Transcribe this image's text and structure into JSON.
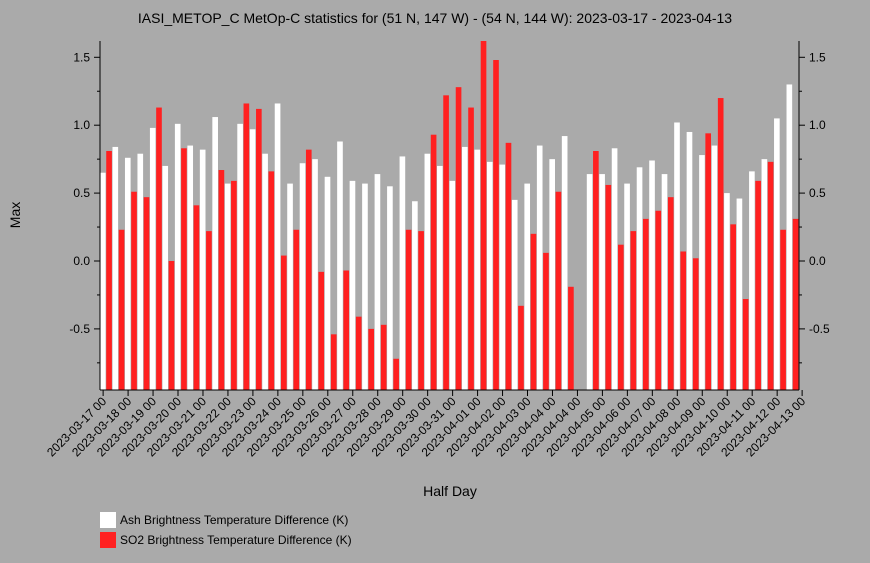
{
  "chart_data": {
    "type": "bar",
    "title": "IASI_METOP_C MetOp-C statistics for (51 N, 147 W) - (54 N, 144 W): 2023-03-17 - 2023-04-13",
    "xlabel": "Half Day",
    "ylabel": "Max",
    "ylim": [
      -0.95,
      1.62
    ],
    "yticks": [
      -0.5,
      0.0,
      0.5,
      1.0,
      1.5
    ],
    "ytick_labels": [
      "-0.5",
      "0.0",
      "0.5",
      "1.0",
      "1.5"
    ],
    "xtick_labels": [
      "2023-03-17 00",
      "2023-03-18 00",
      "2023-03-19 00",
      "2023-03-20 00",
      "2023-03-21 00",
      "2023-03-22 00",
      "2023-03-23 00",
      "2023-03-24 00",
      "2023-03-25 00",
      "2023-03-26 00",
      "2023-03-27 00",
      "2023-03-28 00",
      "2023-03-29 00",
      "2023-03-30 00",
      "2023-03-31 00",
      "2023-04-01 00",
      "2023-04-02 00",
      "2023-04-03 00",
      "2023-04-04 00",
      "2023-04-04 00",
      "2023-04-05 00",
      "2023-04-06 00",
      "2023-04-07 00",
      "2023-04-08 00",
      "2023-04-09 00",
      "2023-04-10 00",
      "2023-04-11 00",
      "2023-04-12 00",
      "2023-04-13 00"
    ],
    "grid": false,
    "legend_position": "bottom-left",
    "series": [
      {
        "name": "Ash Brightness Temperature Difference (K)",
        "color": "#ffffff",
        "values": [
          0.65,
          0.84,
          0.76,
          0.79,
          0.98,
          0.7,
          1.01,
          0.85,
          0.82,
          1.06,
          0.57,
          1.01,
          0.97,
          0.79,
          1.16,
          0.57,
          0.72,
          0.75,
          0.62,
          0.88,
          0.59,
          0.57,
          0.64,
          0.55,
          0.77,
          0.44,
          0.79,
          0.7,
          0.59,
          0.84,
          0.82,
          0.73,
          0.71,
          0.45,
          0.57,
          0.85,
          0.75,
          0.92,
          null,
          0.64,
          0.64,
          0.83,
          0.57,
          0.69,
          0.74,
          0.64,
          1.02,
          0.95,
          0.78,
          0.85,
          0.5,
          0.46,
          0.66,
          0.75,
          1.05,
          1.3
        ]
      },
      {
        "name": "SO2 Brightness Temperature Difference (K)",
        "color": "#ff2020",
        "values": [
          0.81,
          0.23,
          0.51,
          0.47,
          1.13,
          0.0,
          0.83,
          0.41,
          0.22,
          0.67,
          0.59,
          1.16,
          1.12,
          0.66,
          0.04,
          0.23,
          0.82,
          -0.08,
          -0.54,
          -0.07,
          -0.41,
          -0.5,
          -0.47,
          -0.72,
          0.23,
          0.22,
          0.93,
          1.22,
          1.28,
          1.13,
          1.62,
          1.48,
          0.87,
          -0.33,
          0.2,
          0.06,
          0.51,
          -0.19,
          null,
          0.81,
          0.56,
          0.12,
          0.22,
          0.31,
          0.37,
          0.47,
          0.07,
          0.02,
          0.94,
          1.2,
          0.27,
          -0.28,
          0.59,
          0.73,
          0.23,
          0.31
        ]
      }
    ]
  }
}
